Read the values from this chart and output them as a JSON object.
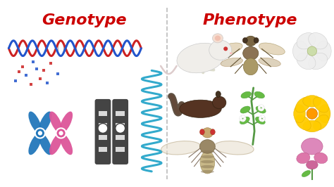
{
  "title_left": "Genotype",
  "title_right": "Phenotype",
  "title_color": "#cc0000",
  "title_fontsize": 16,
  "bg_color": "#ffffff",
  "divider_color": "#aaaaaa",
  "fig_width": 4.74,
  "fig_height": 2.66,
  "dna_color1": "#cc2222",
  "dna_color2": "#2255cc",
  "chr_x_blue": "#2277bb",
  "chr_x_pink": "#dd5599",
  "chr_band_dark": "#444444",
  "rna_color": "#33aacc",
  "mouse_color": "#f0eeea",
  "fly_body": "#c8a870",
  "dark_animal": "#553322",
  "plant_green": "#559944",
  "leaf_green": "#66bb44",
  "flower_white": "#e8e8e8",
  "flower_yellow": "#ffcc00",
  "flower_pink": "#dd77aa"
}
